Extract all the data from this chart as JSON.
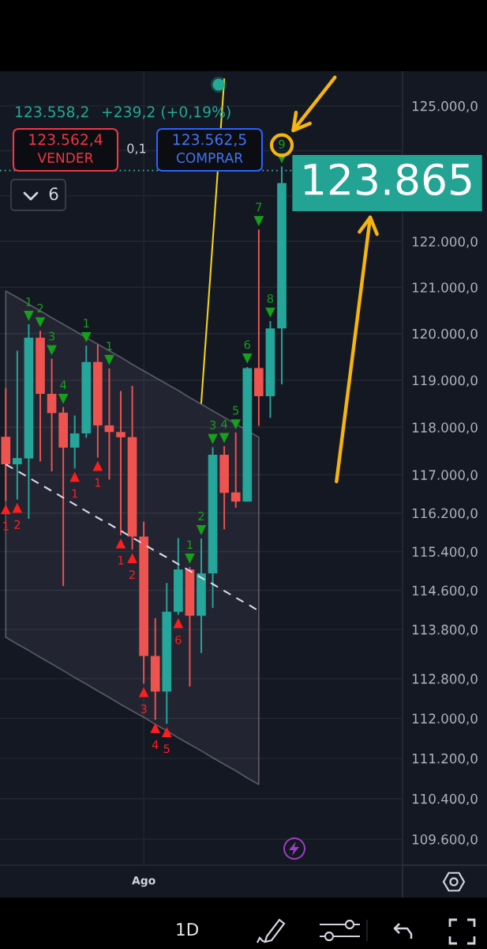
{
  "chart_data": {
    "type": "candlestick",
    "categories": [
      null,
      null,
      null,
      null,
      null,
      null,
      null,
      null,
      null,
      null,
      null,
      null,
      "Ago",
      null,
      null,
      null,
      null,
      null,
      null,
      null,
      null,
      null,
      null,
      null,
      null,
      null,
      null,
      null,
      null,
      null,
      null,
      null,
      null,
      null,
      null
    ],
    "ohlc": [
      [
        117800,
        118830,
        116450,
        117220
      ],
      [
        117220,
        119630,
        116480,
        117350
      ],
      [
        117340,
        120200,
        116080,
        119910
      ],
      [
        119910,
        120060,
        117280,
        118710
      ],
      [
        118710,
        119460,
        117070,
        118300
      ],
      [
        118310,
        118430,
        114690,
        117570
      ],
      [
        117570,
        118250,
        117130,
        117870
      ],
      [
        117870,
        119740,
        117780,
        119390
      ],
      [
        119390,
        119760,
        117360,
        118040
      ],
      [
        118040,
        119250,
        116900,
        117900
      ],
      [
        117900,
        118770,
        115740,
        117790
      ],
      [
        117790,
        118880,
        115440,
        115710
      ],
      [
        115710,
        116020,
        112700,
        113260
      ],
      [
        113260,
        114030,
        111970,
        112540
      ],
      [
        112540,
        114750,
        111890,
        114160
      ],
      [
        114160,
        115680,
        114100,
        115030
      ],
      [
        115030,
        115080,
        112640,
        114080
      ],
      [
        114080,
        115670,
        113320,
        114950
      ],
      [
        114950,
        117580,
        114240,
        117420
      ],
      [
        117420,
        117600,
        115860,
        116620
      ],
      [
        116630,
        117890,
        116310,
        116440
      ],
      [
        116440,
        119280,
        116440,
        119260
      ],
      [
        119260,
        122260,
        118030,
        118660
      ],
      [
        118660,
        120270,
        118200,
        120110
      ],
      [
        120110,
        123650,
        118910,
        123280
      ],
      null,
      null,
      null,
      null,
      null,
      null,
      null,
      null,
      null,
      null
    ],
    "colors": [
      "#ef5350",
      "#26a69a",
      "#26a69a",
      "#ef5350",
      "#ef5350",
      "#ef5350",
      "#26a69a",
      "#26a69a",
      "#ef5350",
      "#ef5350",
      "#ef5350",
      "#ef5350",
      "#ef5350",
      "#ef5350",
      "#26a69a",
      "#26a69a",
      "#ef5350",
      "#26a69a",
      "#26a69a",
      "#ef5350",
      "#ef5350",
      "#26a69a",
      "#ef5350",
      "#26a69a",
      "#26a69a",
      null,
      null,
      null,
      null,
      null,
      null,
      null,
      null,
      null,
      null
    ],
    "series": [
      {
        "type": "line",
        "color": "#dcd8ea",
        "line_style": "dashed",
        "values": [
          117220,
          117080,
          116940,
          116800,
          116660,
          116520,
          116380,
          116240,
          116100,
          115970,
          115830,
          115690,
          115550,
          115410,
          115280,
          115140,
          115000,
          114860,
          114730,
          114590,
          114450,
          114320,
          114180,
          null,
          null,
          null,
          null,
          null,
          null,
          null,
          null,
          null,
          null,
          null,
          null
        ],
        "lower": [
          113640,
          113500,
          113370,
          113230,
          113100,
          112960,
          112820,
          112690,
          112550,
          112420,
          112280,
          112150,
          112020,
          111880,
          111750,
          111610,
          111480,
          111350,
          111210,
          111080,
          110950,
          110810,
          110680,
          null,
          null,
          null,
          null,
          null,
          null,
          null,
          null,
          null,
          null,
          null,
          null
        ],
        "upper": [
          120920,
          120780,
          120630,
          120490,
          120340,
          120200,
          120060,
          119910,
          119770,
          119630,
          119490,
          119340,
          119200,
          119060,
          118920,
          118780,
          118630,
          118490,
          118350,
          118210,
          118070,
          117930,
          117790,
          null,
          null,
          null,
          null,
          null,
          null,
          null,
          null,
          null,
          null,
          null,
          null
        ]
      },
      {
        "type": "line",
        "color": "#f2d31b",
        "values": [
          null,
          null,
          null,
          null,
          null,
          null,
          null,
          null,
          null,
          null,
          null,
          null,
          null,
          null,
          null,
          null,
          null,
          118520,
          122010,
          125600,
          null,
          null,
          null,
          null,
          null,
          null,
          null,
          null,
          null,
          null,
          null,
          null,
          null,
          null,
          null
        ]
      },
      {
        "type": "scatter",
        "marker": "triangle",
        "color": "#16a01c",
        "values": [
          null,
          null,
          120390,
          120250,
          119650,
          118610,
          null,
          119930,
          null,
          119440,
          null,
          null,
          null,
          null,
          null,
          null,
          115260,
          115850,
          117760,
          117780,
          118070,
          119470,
          122450,
          120460,
          123840,
          null,
          null,
          null,
          null,
          null,
          null,
          null,
          null,
          null,
          null
        ]
      },
      {
        "type": "scatter",
        "marker": "triangle",
        "color": "#ff1e1e",
        "values": [
          116270,
          116300,
          null,
          null,
          null,
          null,
          116950,
          null,
          117180,
          null,
          115560,
          115260,
          112520,
          111800,
          111720,
          113920,
          null,
          null,
          null,
          null,
          null,
          null,
          null,
          null,
          null,
          null,
          null,
          null,
          null,
          null,
          null,
          null,
          null,
          null,
          null
        ]
      }
    ],
    "ylim": [
      109090,
      125780
    ],
    "log": true,
    "yticks": [
      {
        "value": 125000,
        "label": "125.000,0"
      },
      {
        "value": 124000,
        "label": null
      },
      {
        "value": 123000,
        "label": null
      },
      {
        "value": 122000,
        "label": "122.000,0"
      },
      {
        "value": 121000,
        "label": "121.000,0"
      },
      {
        "value": 120000,
        "label": "120.000,0"
      },
      {
        "value": 119000,
        "label": "119.000,0"
      },
      {
        "value": 118000,
        "label": "118.000,0"
      },
      {
        "value": 117000,
        "label": "117.000,0"
      },
      {
        "value": 116200,
        "label": "116.200,0"
      },
      {
        "value": 115400,
        "label": "115.400,0"
      },
      {
        "value": 114600,
        "label": "114.600,0"
      },
      {
        "value": 113800,
        "label": "113.800,0"
      },
      {
        "value": 112800,
        "label": "112.800,0"
      },
      {
        "value": 112000,
        "label": "112.000,0"
      },
      {
        "value": 111200,
        "label": "111.200,0"
      },
      {
        "value": 110400,
        "label": "110.400,0"
      },
      {
        "value": 109600,
        "label": "109.600,0"
      }
    ],
    "grid": true,
    "ref_lines": [
      {
        "axis": "y",
        "value": 123558.2,
        "color": "#4db6ac",
        "line_style": "dotted"
      }
    ],
    "annotations": [
      "123.558,2",
      "+239,2 (+0,19%)",
      "123.562,4",
      "VENDER",
      "0,1",
      "123.562,5",
      "COMPRAR",
      "6",
      "1",
      "2",
      "3",
      "4",
      "1",
      "1",
      "1",
      "2",
      "3",
      "4",
      "5",
      "6",
      "7",
      "8",
      "9",
      "1",
      "2",
      "1",
      "1",
      "1",
      "2",
      "3",
      "4",
      "5",
      "6",
      "123.865",
      "1D"
    ]
  }
}
